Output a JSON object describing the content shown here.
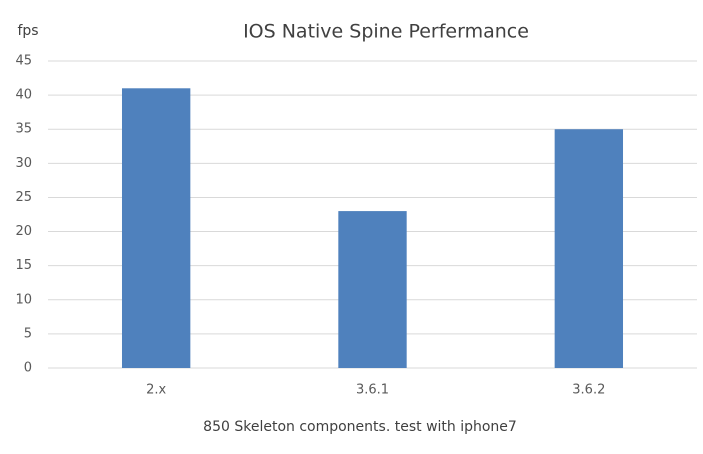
{
  "chart_data": {
    "type": "bar",
    "title": "IOS Native Spine Perfermance",
    "y_label": "fps",
    "x_label": "850 Skeleton components. test with iphone7",
    "categories": [
      "2.x",
      "3.6.1",
      "3.6.2"
    ],
    "values": [
      41,
      23,
      35
    ],
    "color": "#4f81bd",
    "ylim": [
      0,
      45
    ],
    "yticks": [
      0,
      5,
      10,
      15,
      20,
      25,
      30,
      35,
      40,
      45
    ],
    "grid": true
  }
}
